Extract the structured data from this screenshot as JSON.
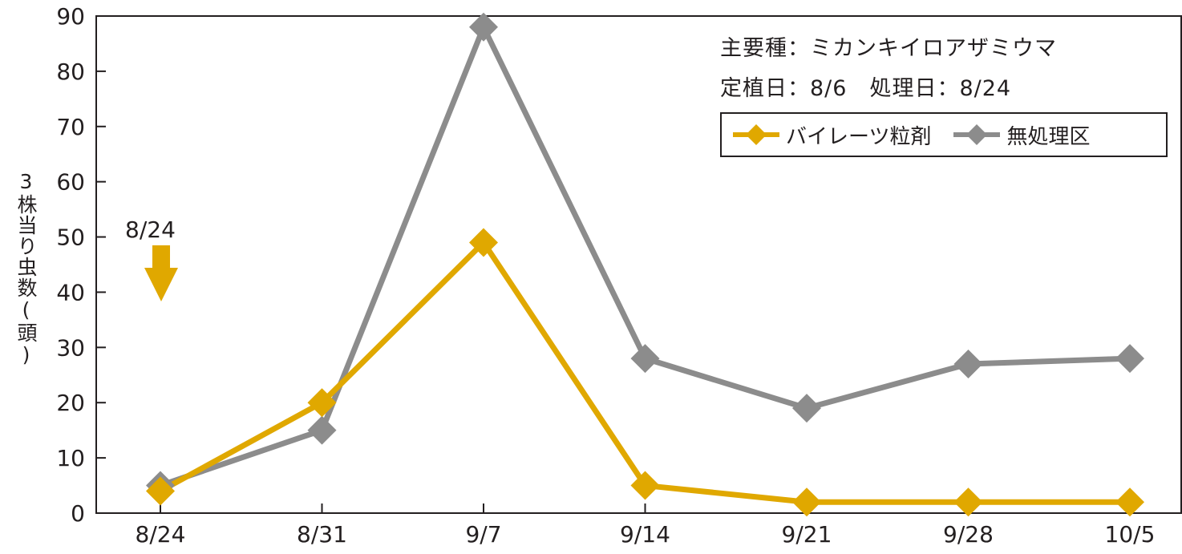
{
  "chart_data": {
    "type": "line",
    "title": "",
    "xlabel": "",
    "ylabel": "3株当り虫数(頭)",
    "categories": [
      "8/24",
      "8/31",
      "9/7",
      "9/14",
      "9/21",
      "9/28",
      "10/5"
    ],
    "ylim": [
      0,
      90
    ],
    "yticks": [
      0,
      10,
      20,
      30,
      40,
      50,
      60,
      70,
      80,
      90
    ],
    "grid": false,
    "legend_position": "top-right",
    "series": [
      {
        "name": "バイレーツ粒剤",
        "color": "#e0a800",
        "values": [
          4,
          20,
          49,
          5,
          2,
          2,
          2
        ]
      },
      {
        "name": "無処理区",
        "color": "#8c8c8c",
        "values": [
          5,
          15,
          88,
          28,
          19,
          27,
          28
        ]
      }
    ],
    "annotations": {
      "species": "主要種：ミカンキイロアザミウマ",
      "dates": "定植日：8/6　処理日：8/24",
      "marker_label": "8/24"
    }
  }
}
